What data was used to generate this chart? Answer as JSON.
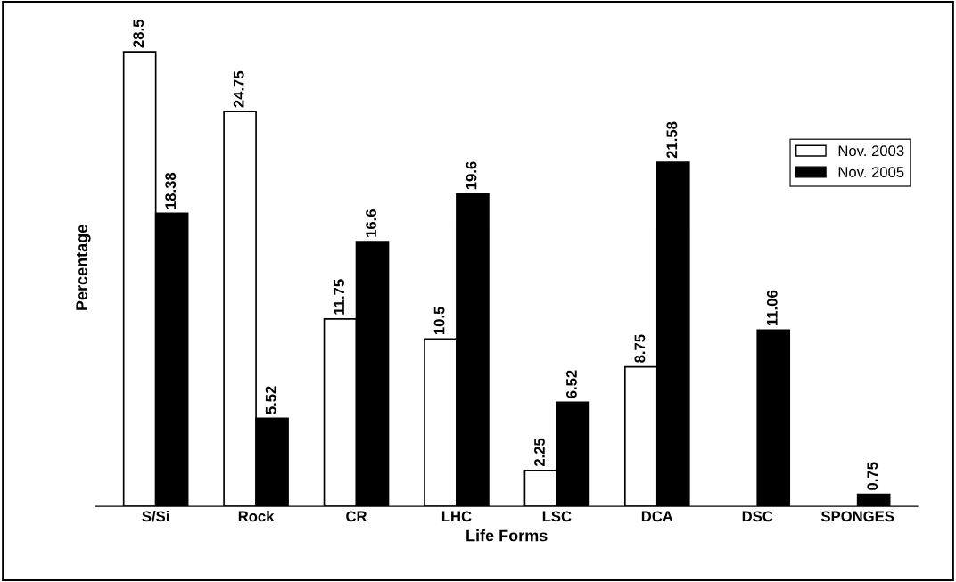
{
  "chart_data": {
    "type": "bar",
    "xlabel": "Life Forms",
    "ylabel": "Percentage",
    "categories": [
      "S/Si",
      "Rock",
      "CR",
      "LHC",
      "LSC",
      "DCA",
      "DSC",
      "SPONGES"
    ],
    "series": [
      {
        "name": "Nov. 2003",
        "color": "#ffffff",
        "values": [
          28.5,
          24.75,
          11.75,
          10.5,
          2.25,
          8.75,
          null,
          null
        ]
      },
      {
        "name": "Nov. 2005",
        "color": "#000000",
        "values": [
          18.38,
          5.52,
          16.6,
          19.6,
          6.52,
          21.58,
          11.06,
          0.75
        ]
      }
    ],
    "data_labels": true,
    "legend": "right",
    "grid": false
  }
}
